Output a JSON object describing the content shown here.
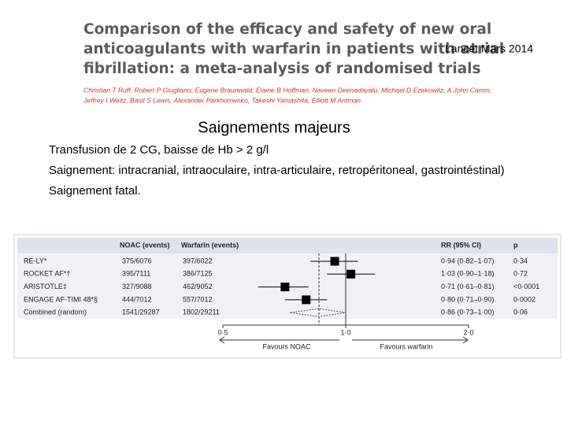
{
  "paper": {
    "title_lines": [
      "Comparison of the efficacy and safety of new oral",
      "anticoagulants with warfarin in patients with atrial",
      "fibrillation: a meta-analysis of randomised trials"
    ],
    "author_lines": [
      "Christian T Ruff, Robert P Giugliano, Eugene Braunwald, Elaine B Hoffman, Naveen Deenadayalu, Michael D Ezekowitz, A John Camm,",
      "Jeffrey I Weitz, Basil S Lewis, Alexander Parkhomenko, Takeshi Yamashita, Elliott M Antman"
    ]
  },
  "citation": "Lancet Mars 2014",
  "heading": "Saignements majeurs",
  "lines": [
    "Transfusion de 2 CG, baisse de Hb > 2 g/l",
    "Saignement: intracranial, intraoculaire, intra-articulaire, retropéritoneal, gastrointéstinal)",
    "Saignement fatal."
  ],
  "chart_data": {
    "type": "forest",
    "columns": [
      "NOAC (events)",
      "Warfarin (events)",
      "RR (95% CI)",
      "p"
    ],
    "categories": [
      "RE-LY*",
      "ROCKET AF*†",
      "ARISTOTLE‡",
      "ENGAGE AF-TIMI 48*§",
      "Combined (random)"
    ],
    "noac": [
      "375/6076",
      "395/7111",
      "327/9088",
      "444/7012",
      "1541/29287"
    ],
    "warfarin": [
      "397/6022",
      "386/7125",
      "462/9052",
      "557/7012",
      "1802/29211"
    ],
    "values": [
      0.94,
      1.03,
      0.71,
      0.8,
      0.86
    ],
    "ci_low": [
      0.82,
      0.9,
      0.61,
      0.71,
      0.73
    ],
    "ci_high": [
      1.07,
      1.18,
      0.81,
      0.9,
      1.0
    ],
    "value_labels": [
      "0·94 (0·82–1·07)",
      "1·03 (0·90–1·18)",
      "0·71 (0·61–0·81)",
      "0·80 (0·71–0·90)",
      "0·86 (0·73–1·00)"
    ],
    "p": [
      "0·34",
      "0·72",
      "<0·0001",
      "0·0002",
      "0·06"
    ],
    "xlim": [
      0.5,
      2.0
    ],
    "xticks": [
      {
        "value": 0.5,
        "label": "0·5"
      },
      {
        "value": 1.0,
        "label": "1·0"
      },
      {
        "value": 2.0,
        "label": "2·0"
      }
    ],
    "log_scale": true,
    "color": "#000000",
    "annotations": [
      "Favours NOAC",
      "Favours warfarin"
    ]
  }
}
